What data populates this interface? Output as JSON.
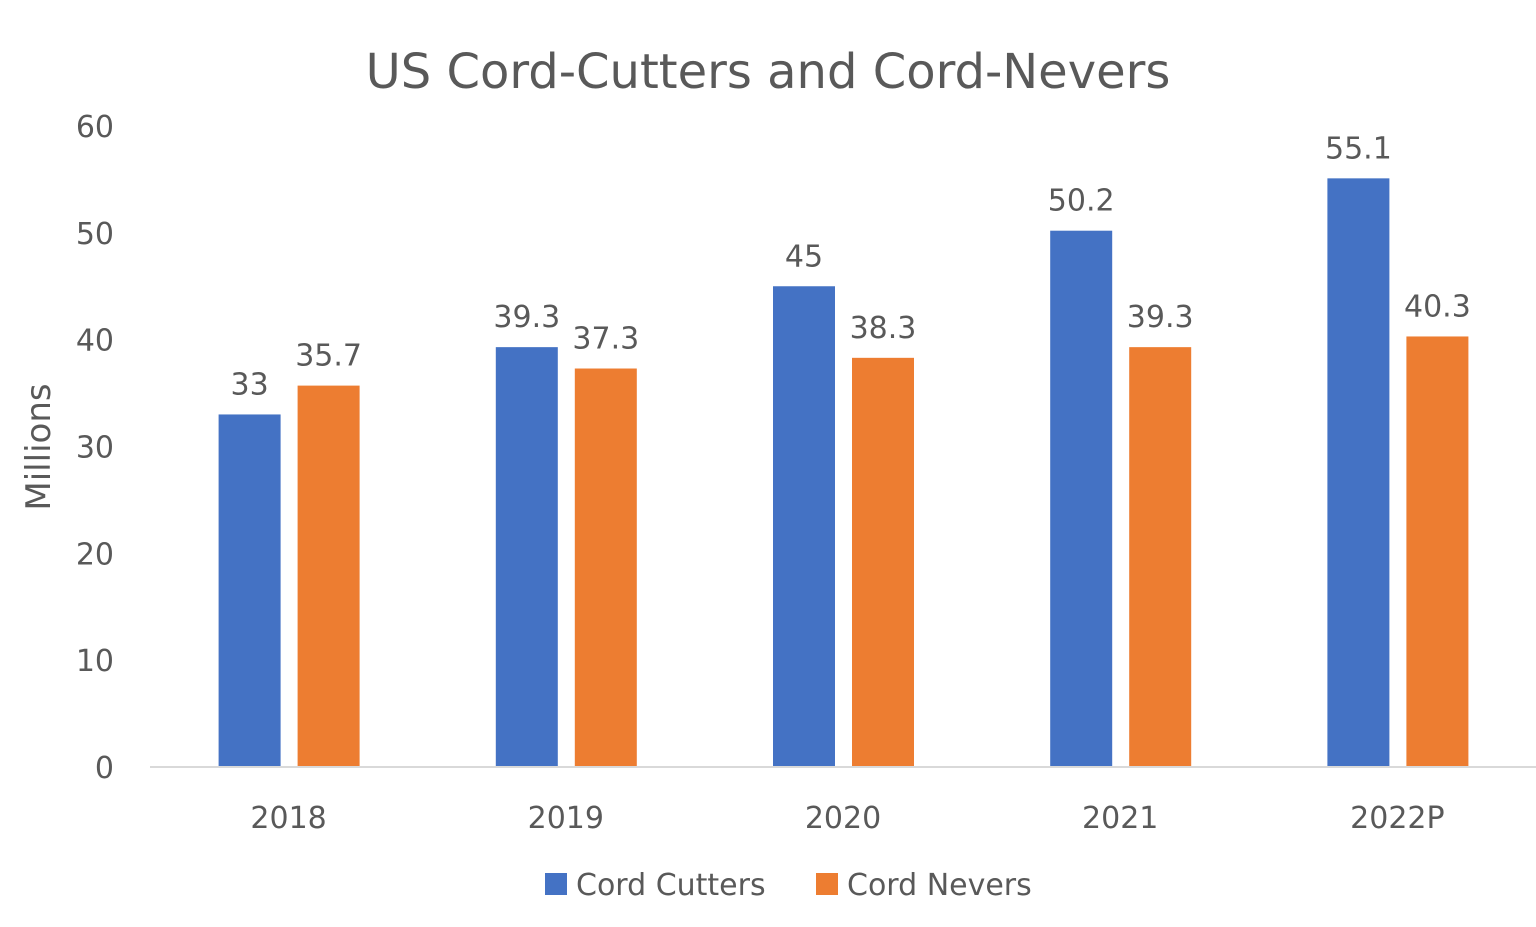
{
  "chart_data": {
    "type": "bar",
    "title": "US Cord-Cutters and Cord-Nevers",
    "xlabel": "",
    "ylabel": "Millions",
    "ylim": [
      0,
      60
    ],
    "yticks": [
      0,
      10,
      20,
      30,
      40,
      50,
      60
    ],
    "grid": false,
    "legend_position": "bottom",
    "categories": [
      "2018",
      "2019",
      "2020",
      "2021",
      "2022P"
    ],
    "series": [
      {
        "name": "Cord Cutters",
        "color": "#4472C4",
        "values": [
          33,
          39.3,
          45,
          50.2,
          55.1
        ],
        "labels": [
          "33",
          "39.3",
          "45",
          "50.2",
          "55.1"
        ]
      },
      {
        "name": "Cord Nevers",
        "color": "#ED7D31",
        "values": [
          35.7,
          37.3,
          38.3,
          39.3,
          40.3
        ],
        "labels": [
          "35.7",
          "37.3",
          "38.3",
          "39.3",
          "40.3"
        ]
      }
    ]
  }
}
